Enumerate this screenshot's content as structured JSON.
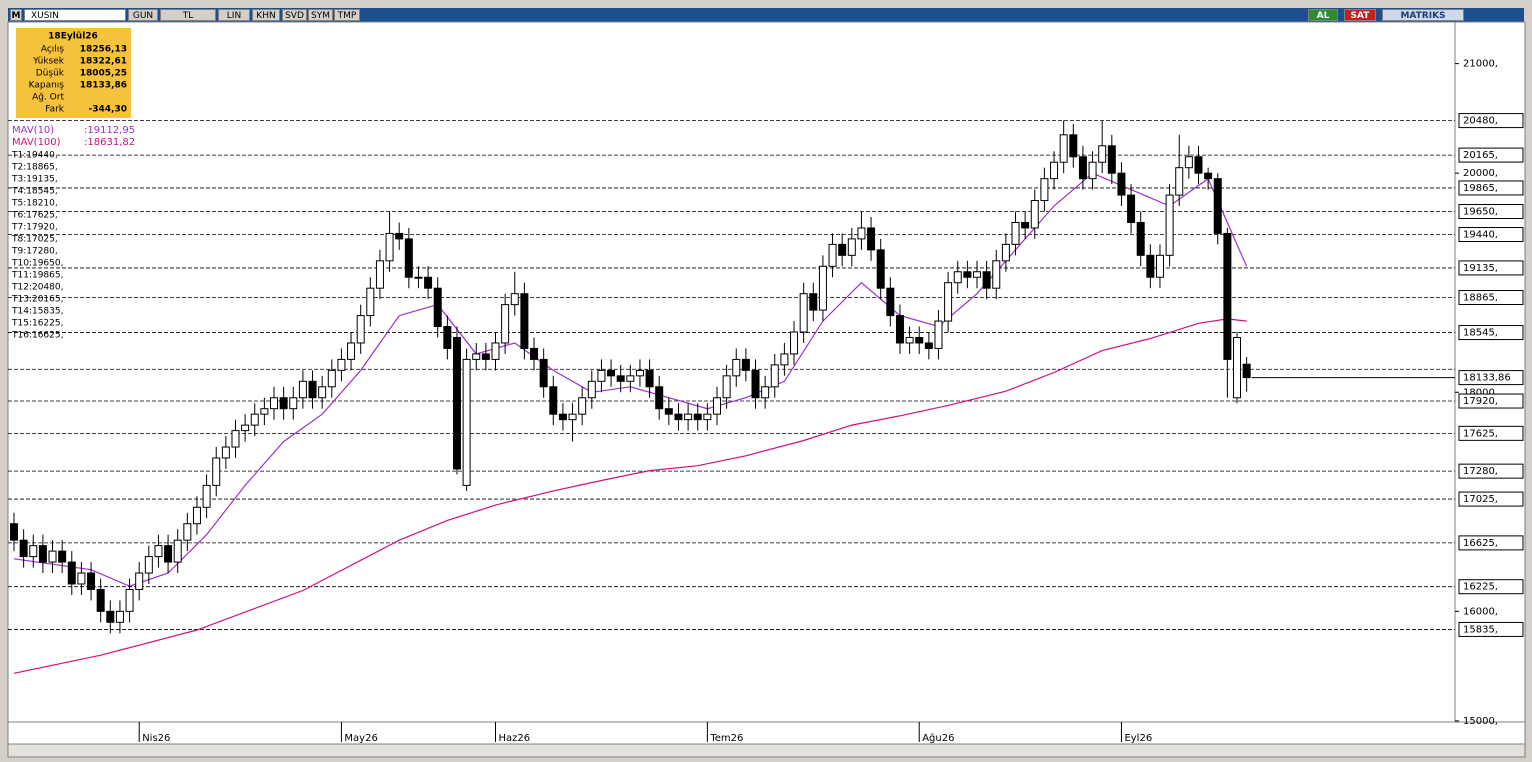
{
  "toolbar": {
    "logo": "M",
    "symbol": "XUSIN",
    "buttons": [
      "GUN",
      "TL",
      "LIN",
      "KHN",
      "SVD",
      "SYM",
      "TMP"
    ],
    "buy": "AL",
    "sell": "SAT",
    "brand": "MATRIKS"
  },
  "info": {
    "date": "18Eylül26",
    "rows": [
      {
        "label": "Açılış",
        "value": "18256,13"
      },
      {
        "label": "Yüksek",
        "value": "18322,61"
      },
      {
        "label": "Düşük",
        "value": "18005,25"
      },
      {
        "label": "Kapanış",
        "value": "18133,86"
      },
      {
        "label": "Ağ. Ort"
      },
      {
        "label": "Fark",
        "value": "-344,30"
      }
    ]
  },
  "chart_data": {
    "type": "candlestick",
    "categories": [
      null,
      null,
      null,
      null,
      null,
      null,
      null,
      null,
      null,
      null,
      null,
      null,
      null,
      "Nis26",
      null,
      null,
      null,
      null,
      null,
      null,
      null,
      null,
      null,
      null,
      null,
      null,
      null,
      null,
      null,
      null,
      null,
      null,
      null,
      null,
      "May26",
      null,
      null,
      null,
      null,
      null,
      null,
      null,
      null,
      null,
      null,
      null,
      null,
      null,
      null,
      null,
      "Haz26",
      null,
      null,
      null,
      null,
      null,
      null,
      null,
      null,
      null,
      null,
      null,
      null,
      null,
      null,
      null,
      null,
      null,
      null,
      null,
      null,
      null,
      "Tem26",
      null,
      null,
      null,
      null,
      null,
      null,
      null,
      null,
      null,
      null,
      null,
      null,
      null,
      null,
      null,
      null,
      null,
      null,
      null,
      null,
      null,
      "Ağu26",
      null,
      null,
      null,
      null,
      null,
      null,
      null,
      null,
      null,
      null,
      null,
      null,
      null,
      null,
      null,
      null,
      null,
      null,
      null,
      null,
      "Eyl26",
      null,
      null,
      null,
      null,
      null,
      null,
      null,
      null,
      null,
      null,
      null,
      null,
      null
    ],
    "candles": {
      "open": [
        16800,
        16650,
        16500,
        16600,
        16450,
        16550,
        16450,
        16250,
        16350,
        16200,
        16000,
        15900,
        16000,
        16200,
        16350,
        16500,
        16600,
        16450,
        16650,
        16800,
        16950,
        17150,
        17400,
        17500,
        17650,
        17700,
        17800,
        17850,
        17950,
        17850,
        17950,
        18100,
        17950,
        18050,
        18200,
        18300,
        18450,
        18700,
        18950,
        19200,
        19450,
        19400,
        19050,
        19050,
        18950,
        18600,
        18500,
        17150,
        18300,
        18350,
        18300,
        18450,
        18800,
        18900,
        18400,
        18300,
        18050,
        17800,
        17750,
        17800,
        17950,
        18100,
        18200,
        18150,
        18100,
        18150,
        18200,
        18050,
        17850,
        17800,
        17750,
        17800,
        17750,
        17800,
        17950,
        18150,
        18300,
        18200,
        17950,
        18050,
        18250,
        18350,
        18550,
        18900,
        18750,
        19150,
        19350,
        19250,
        19400,
        19500,
        19300,
        18950,
        18700,
        18450,
        18500,
        18450,
        18400,
        18650,
        19000,
        19100,
        19050,
        19100,
        18950,
        19200,
        19350,
        19550,
        19500,
        19750,
        19950,
        20100,
        20350,
        20150,
        19950,
        20100,
        20250,
        20000,
        19800,
        19550,
        19250,
        19050,
        19250,
        19800,
        20050,
        20150,
        20000,
        19950,
        19450,
        17950,
        18256.13
      ],
      "high": [
        16900,
        16750,
        16700,
        16700,
        16650,
        16650,
        16550,
        16450,
        16450,
        16300,
        16100,
        16100,
        16300,
        16450,
        16600,
        16700,
        16700,
        16750,
        16900,
        17050,
        17250,
        17500,
        17600,
        17750,
        17800,
        17900,
        17950,
        18050,
        18050,
        18050,
        18200,
        18200,
        18150,
        18300,
        18400,
        18550,
        18800,
        19050,
        19300,
        19650,
        19550,
        19500,
        19150,
        19150,
        19050,
        18700,
        18600,
        18400,
        18450,
        18450,
        18550,
        18900,
        19100,
        19000,
        18500,
        18400,
        18150,
        17900,
        17900,
        18050,
        18200,
        18300,
        18300,
        18250,
        18250,
        18300,
        18300,
        18150,
        17950,
        17900,
        17900,
        17900,
        17900,
        18050,
        18250,
        18400,
        18400,
        18300,
        18150,
        18350,
        18450,
        18650,
        19000,
        19000,
        19250,
        19450,
        19450,
        19500,
        19650,
        19600,
        19400,
        19050,
        18800,
        18600,
        18600,
        18550,
        18750,
        19100,
        19200,
        19200,
        19200,
        19200,
        19300,
        19450,
        19650,
        19650,
        19850,
        20050,
        20200,
        20480,
        20450,
        20250,
        20200,
        20480,
        20350,
        20100,
        19900,
        19650,
        19350,
        19350,
        19900,
        20350,
        20250,
        20250,
        20050,
        20000,
        19500,
        18550,
        18322.61
      ],
      "low": [
        16550,
        16400,
        16400,
        16350,
        16350,
        16350,
        16150,
        16150,
        16100,
        15900,
        15800,
        15800,
        15900,
        16100,
        16250,
        16400,
        16350,
        16350,
        16550,
        16700,
        16850,
        17050,
        17300,
        17400,
        17550,
        17600,
        17700,
        17750,
        17750,
        17750,
        17850,
        17850,
        17850,
        17950,
        18100,
        18200,
        18350,
        18600,
        18850,
        19100,
        19300,
        18950,
        18950,
        18850,
        18500,
        18300,
        17250,
        17100,
        18200,
        18200,
        18200,
        18350,
        18700,
        18300,
        18200,
        17950,
        17700,
        17650,
        17550,
        17700,
        17850,
        18000,
        18050,
        18000,
        18000,
        18050,
        17950,
        17750,
        17700,
        17650,
        17650,
        17650,
        17650,
        17700,
        17850,
        18050,
        18100,
        17850,
        17850,
        17950,
        18150,
        18250,
        18450,
        18650,
        18650,
        19050,
        19150,
        19150,
        19300,
        19200,
        18850,
        18600,
        18350,
        18350,
        18350,
        18300,
        18300,
        18550,
        18900,
        18950,
        18950,
        18850,
        18850,
        19100,
        19250,
        19400,
        19400,
        19650,
        19850,
        20000,
        20050,
        19850,
        19850,
        20000,
        19900,
        19700,
        19450,
        19150,
        18950,
        18950,
        19150,
        19700,
        19950,
        19900,
        19850,
        19350,
        17950,
        17900,
        18005.25
      ],
      "close": [
        16650,
        16500,
        16600,
        16450,
        16550,
        16450,
        16250,
        16350,
        16200,
        16000,
        15900,
        16000,
        16200,
        16350,
        16500,
        16600,
        16450,
        16650,
        16800,
        16950,
        17150,
        17400,
        17500,
        17650,
        17700,
        17800,
        17850,
        17950,
        17850,
        17950,
        18100,
        17950,
        18050,
        18200,
        18300,
        18450,
        18700,
        18950,
        19200,
        19450,
        19400,
        19050,
        19050,
        18950,
        18600,
        18400,
        17300,
        18300,
        18350,
        18300,
        18450,
        18800,
        18900,
        18400,
        18300,
        18050,
        17800,
        17750,
        17800,
        17950,
        18100,
        18200,
        18150,
        18100,
        18150,
        18200,
        18050,
        17850,
        17800,
        17750,
        17800,
        17750,
        17800,
        17950,
        18150,
        18300,
        18200,
        17950,
        18050,
        18250,
        18350,
        18550,
        18900,
        18750,
        19150,
        19350,
        19250,
        19400,
        19500,
        19300,
        18950,
        18700,
        18450,
        18500,
        18450,
        18400,
        18650,
        19000,
        19100,
        19050,
        19100,
        18950,
        19200,
        19350,
        19550,
        19500,
        19750,
        19950,
        20100,
        20350,
        20150,
        19950,
        20100,
        20250,
        20000,
        19800,
        19550,
        19250,
        19050,
        19250,
        19800,
        20050,
        20150,
        20000,
        19950,
        19450,
        18300,
        18500,
        18133.86
      ],
      "last_label": "18133,86"
    },
    "lines": [
      {
        "name": "MAV(10)",
        "legend_value": ":19112,95",
        "color": "#9b30c8",
        "x": [
          0,
          8,
          12,
          16,
          20,
          24,
          28,
          32,
          36,
          40,
          44,
          48,
          52,
          56,
          60,
          64,
          68,
          72,
          76,
          80,
          84,
          88,
          92,
          96,
          100,
          104,
          108,
          112,
          116,
          120,
          124,
          128
        ],
        "values": [
          16480,
          16380,
          16230,
          16350,
          16700,
          17150,
          17550,
          17800,
          18200,
          18700,
          18800,
          18350,
          18450,
          18200,
          18000,
          18050,
          17950,
          17850,
          17950,
          18100,
          18650,
          19000,
          18700,
          18600,
          18900,
          19300,
          19700,
          20000,
          19850,
          19700,
          19950,
          19150
        ]
      },
      {
        "name": "MAV(100)",
        "legend_value": ":18631,82",
        "color": "#d0107a",
        "x": [
          0,
          9,
          19,
          30,
          40,
          45,
          50,
          56,
          61,
          66,
          71,
          76,
          82,
          87,
          92,
          97,
          103,
          108,
          113,
          118,
          123,
          126,
          128
        ],
        "values": [
          15435,
          15600,
          15830,
          16190,
          16650,
          16830,
          16970,
          17100,
          17195,
          17285,
          17330,
          17420,
          17560,
          17700,
          17785,
          17880,
          18010,
          18180,
          18380,
          18490,
          18630,
          18670,
          18650
        ]
      }
    ],
    "levels": [
      {
        "label": "T1:19440,",
        "value": 19440,
        "axis_label": "19440,"
      },
      {
        "label": "T2:18865,",
        "value": 18865,
        "axis_label": "18865,"
      },
      {
        "label": "T3:19135,",
        "value": 19135,
        "axis_label": "19135,"
      },
      {
        "label": "T4:18545,",
        "value": 18545,
        "axis_label": "18545,"
      },
      {
        "label": "T5:18210,",
        "value": 18210
      },
      {
        "label": "T6:17625,",
        "value": 17625,
        "axis_label": "17625,"
      },
      {
        "label": "T7:17920,",
        "value": 17920,
        "axis_label": "17920,"
      },
      {
        "label": "T8:17025,",
        "value": 17025,
        "axis_label": "17025,"
      },
      {
        "label": "T9:17280,",
        "value": 17280,
        "axis_label": "17280,"
      },
      {
        "label": "T10:19650,",
        "value": 19650,
        "axis_label": "19650,"
      },
      {
        "label": "T11:19865,",
        "value": 19865,
        "axis_label": "19865,"
      },
      {
        "label": "T12:20480,",
        "value": 20480,
        "axis_label": "20480,"
      },
      {
        "label": "T13:20165,",
        "value": 20165,
        "axis_label": "20165,"
      },
      {
        "label": "T14:15835,",
        "value": 15835,
        "axis_label": "15835,"
      },
      {
        "label": "T15:16225,",
        "value": 16225,
        "axis_label": "16225,"
      },
      {
        "label": "T16:16625,",
        "value": 16625,
        "axis_label": "16625,"
      }
    ],
    "ylim": [
      14990,
      21380
    ],
    "yticks": [
      {
        "value": 21000,
        "label": "21000,"
      },
      {
        "value": 20000,
        "label": "20000,"
      },
      {
        "value": 18000,
        "label": "18000,"
      },
      {
        "value": 16000,
        "label": "16000,"
      },
      {
        "value": 15000,
        "label": "15000,"
      }
    ]
  }
}
